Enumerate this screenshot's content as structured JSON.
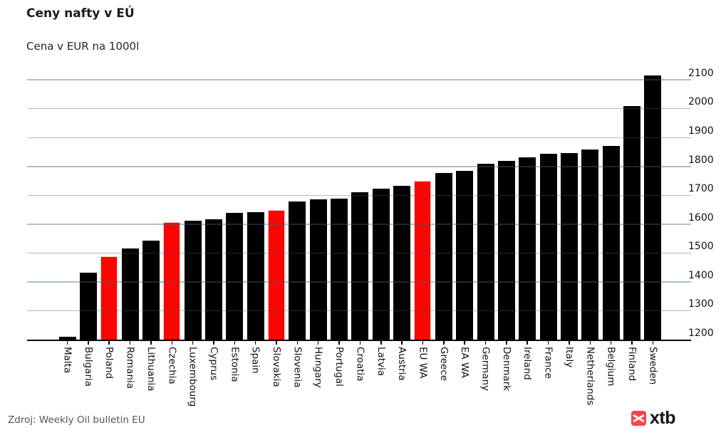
{
  "header": {
    "title": "Ceny nafty v EÚ",
    "subtitle": "Cena v EUR na 1000l"
  },
  "chart_data": {
    "type": "bar",
    "title": "Ceny nafty v EÚ",
    "subtitle": "Cena v EUR na 1000l",
    "categories": [
      "Malta",
      "Bulgaria",
      "Poland",
      "Romania",
      "Lithuania",
      "Czechia",
      "Luxembourg",
      "Cyprus",
      "Estonia",
      "Spain",
      "Slovakia",
      "Slovenia",
      "Hungary",
      "Portugal",
      "Croatia",
      "Latvia",
      "Austria",
      "EU WA",
      "Greece",
      "EA WA",
      "Germany",
      "Denmark",
      "Ireland",
      "France",
      "Italy",
      "Netherlands",
      "Belgium",
      "Finland",
      "Sweden"
    ],
    "values": [
      1212,
      1435,
      1490,
      1517,
      1545,
      1610,
      1613,
      1620,
      1640,
      1643,
      1651,
      1681,
      1687,
      1691,
      1712,
      1724,
      1736,
      1753,
      1778,
      1787,
      1810,
      1820,
      1833,
      1845,
      1848,
      1860,
      1874,
      2012,
      2117
    ],
    "highlighted_categories": [
      "Poland",
      "Czechia",
      "Slovakia",
      "EU WA"
    ],
    "ylim": [
      1200,
      2140
    ],
    "yticks": [
      1200,
      1300,
      1400,
      1500,
      1600,
      1700,
      1800,
      1900,
      2000,
      2100
    ],
    "y_axis_side": "right",
    "grid": "horizontal",
    "legend": "none"
  },
  "footer": {
    "source": "Zdroj: Weekly Oil bulletin EU",
    "logo_text": "xtb"
  },
  "colors": {
    "bar": "#000000",
    "highlight": "#fa0500",
    "gridline": "rgba(60,100,125,0.42)",
    "axis": "#000000",
    "logo_red": "#f9444f"
  }
}
